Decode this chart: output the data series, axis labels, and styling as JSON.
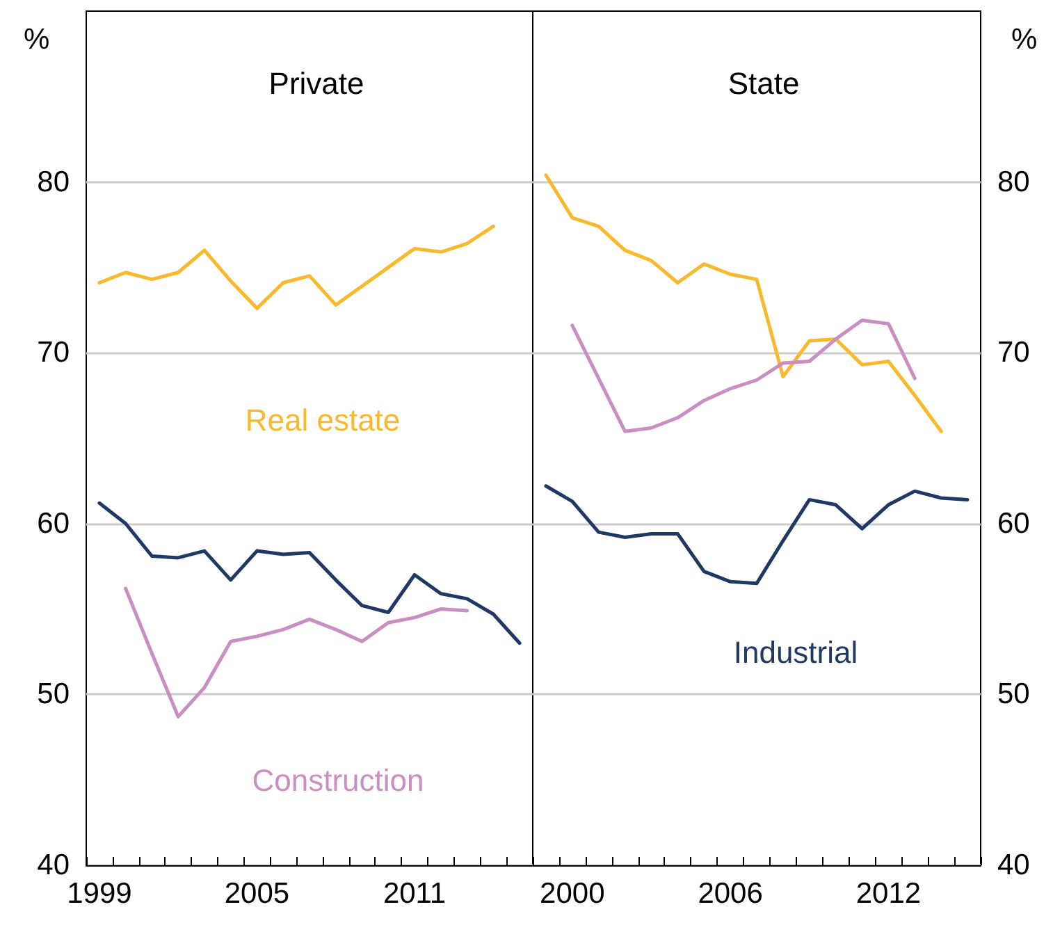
{
  "chart_data": [
    {
      "type": "line",
      "title": "Private",
      "ylabel": "%",
      "categories": [
        "1999",
        null,
        null,
        null,
        null,
        null,
        "2005",
        null,
        null,
        null,
        null,
        null,
        "2011",
        null,
        null,
        null,
        null
      ],
      "series": [
        {
          "name": "Real estate",
          "color": "#f9b92c",
          "values": [
            74.1,
            74.7,
            74.3,
            74.7,
            76.0,
            74.2,
            72.6,
            74.1,
            74.5,
            72.8,
            73.9,
            75.0,
            76.1,
            75.9,
            76.4,
            77.4,
            null
          ]
        },
        {
          "color": "#1f3864",
          "values": [
            61.2,
            60.0,
            58.1,
            58.0,
            58.4,
            56.7,
            58.4,
            58.2,
            58.3,
            56.7,
            55.2,
            54.8,
            57.0,
            55.9,
            55.6,
            54.7,
            53.0
          ]
        },
        {
          "name": "Construction",
          "color": "#c98ec2",
          "values": [
            null,
            56.2,
            52.4,
            48.7,
            50.4,
            53.1,
            53.4,
            53.8,
            54.4,
            53.8,
            53.1,
            54.2,
            54.5,
            55.0,
            54.9,
            null,
            null
          ]
        }
      ],
      "ylim": [
        40,
        90
      ],
      "yticks": [
        40,
        50,
        60,
        70,
        80
      ],
      "grid": "y"
    },
    {
      "type": "line",
      "title": "State",
      "ylabel": "%",
      "categories": [
        null,
        "2000",
        null,
        null,
        null,
        null,
        null,
        "2006",
        null,
        null,
        null,
        null,
        null,
        "2012",
        null,
        null,
        null
      ],
      "series": [
        {
          "color": "#f9b92c",
          "values": [
            80.4,
            77.9,
            77.4,
            76.0,
            75.4,
            74.1,
            75.2,
            74.6,
            74.3,
            68.6,
            70.7,
            70.8,
            69.3,
            69.5,
            67.5,
            65.4,
            null
          ]
        },
        {
          "name": "Industrial",
          "color": "#1f3864",
          "values": [
            62.2,
            61.3,
            59.5,
            59.2,
            59.4,
            59.4,
            57.2,
            56.6,
            56.5,
            59.0,
            61.4,
            61.1,
            59.7,
            61.1,
            61.9,
            61.5,
            61.4
          ]
        },
        {
          "color": "#c98ec2",
          "values": [
            null,
            71.6,
            68.5,
            65.4,
            65.6,
            66.2,
            67.2,
            67.9,
            68.4,
            69.4,
            69.5,
            70.8,
            71.9,
            71.7,
            68.5,
            null,
            null
          ]
        }
      ],
      "ylim": [
        40,
        90
      ],
      "yticks": [
        40,
        50,
        60,
        70,
        80
      ],
      "grid": "y"
    }
  ]
}
